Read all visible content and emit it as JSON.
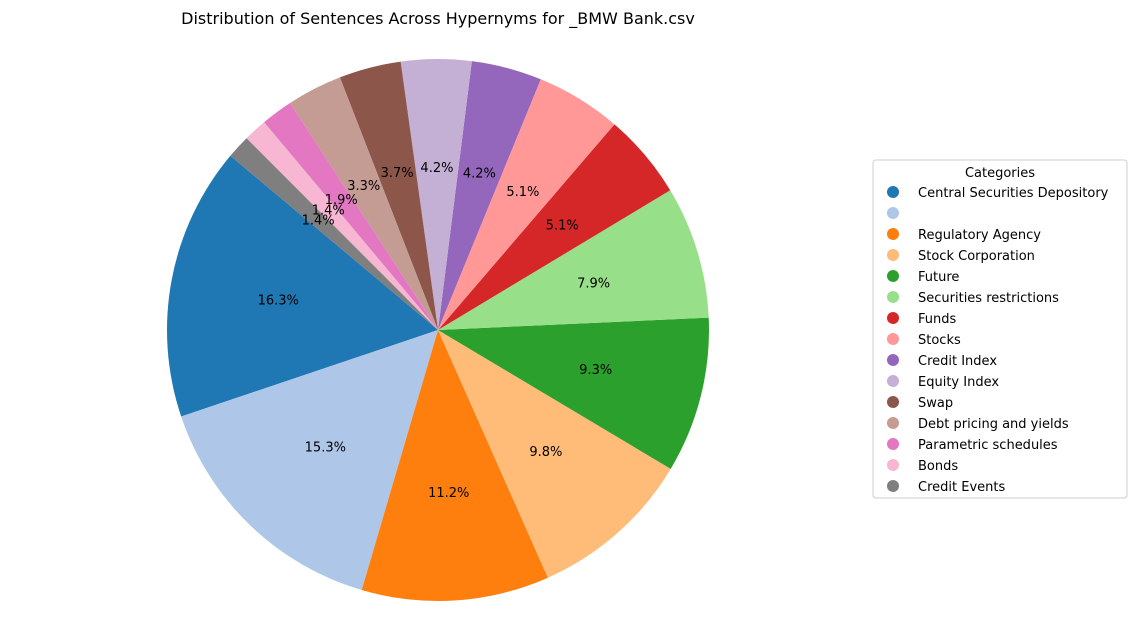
{
  "chart_data": {
    "type": "pie",
    "title": "Distribution of Sentences Across Hypernyms for _BMW Bank.csv",
    "start_angle_deg": 140,
    "direction": "counterclockwise",
    "legend": {
      "title": "Categories",
      "placement": "right"
    },
    "slices": [
      {
        "label": "Central Securities Depository",
        "value": 16.3,
        "pct_label": "16.3%",
        "color": "#1f77b4"
      },
      {
        "label": "",
        "value": 15.3,
        "pct_label": "15.3%",
        "color": "#aec7e8"
      },
      {
        "label": "Regulatory Agency",
        "value": 11.2,
        "pct_label": "11.2%",
        "color": "#ff7f0e"
      },
      {
        "label": "Stock Corporation",
        "value": 9.8,
        "pct_label": "9.8%",
        "color": "#ffbb78"
      },
      {
        "label": "Future",
        "value": 9.3,
        "pct_label": "9.3%",
        "color": "#2ca02c"
      },
      {
        "label": "Securities restrictions",
        "value": 7.9,
        "pct_label": "7.9%",
        "color": "#98df8a"
      },
      {
        "label": "Funds",
        "value": 5.1,
        "pct_label": "5.1%",
        "color": "#d62728"
      },
      {
        "label": "Stocks",
        "value": 5.1,
        "pct_label": "5.1%",
        "color": "#ff9896"
      },
      {
        "label": "Credit Index",
        "value": 4.2,
        "pct_label": "4.2%",
        "color": "#9467bd"
      },
      {
        "label": "Equity Index",
        "value": 4.2,
        "pct_label": "4.2%",
        "color": "#c5b0d5"
      },
      {
        "label": "Swap",
        "value": 3.7,
        "pct_label": "3.7%",
        "color": "#8c564b"
      },
      {
        "label": "Debt pricing and yields",
        "value": 3.3,
        "pct_label": "3.3%",
        "color": "#c49c94"
      },
      {
        "label": "Parametric schedules",
        "value": 1.9,
        "pct_label": "1.9%",
        "color": "#e377c2"
      },
      {
        "label": "Bonds",
        "value": 1.4,
        "pct_label": "1.4%",
        "color": "#f7b6d2"
      },
      {
        "label": "Credit Events",
        "value": 1.4,
        "pct_label": "1.4%",
        "color": "#7f7f7f"
      }
    ]
  }
}
